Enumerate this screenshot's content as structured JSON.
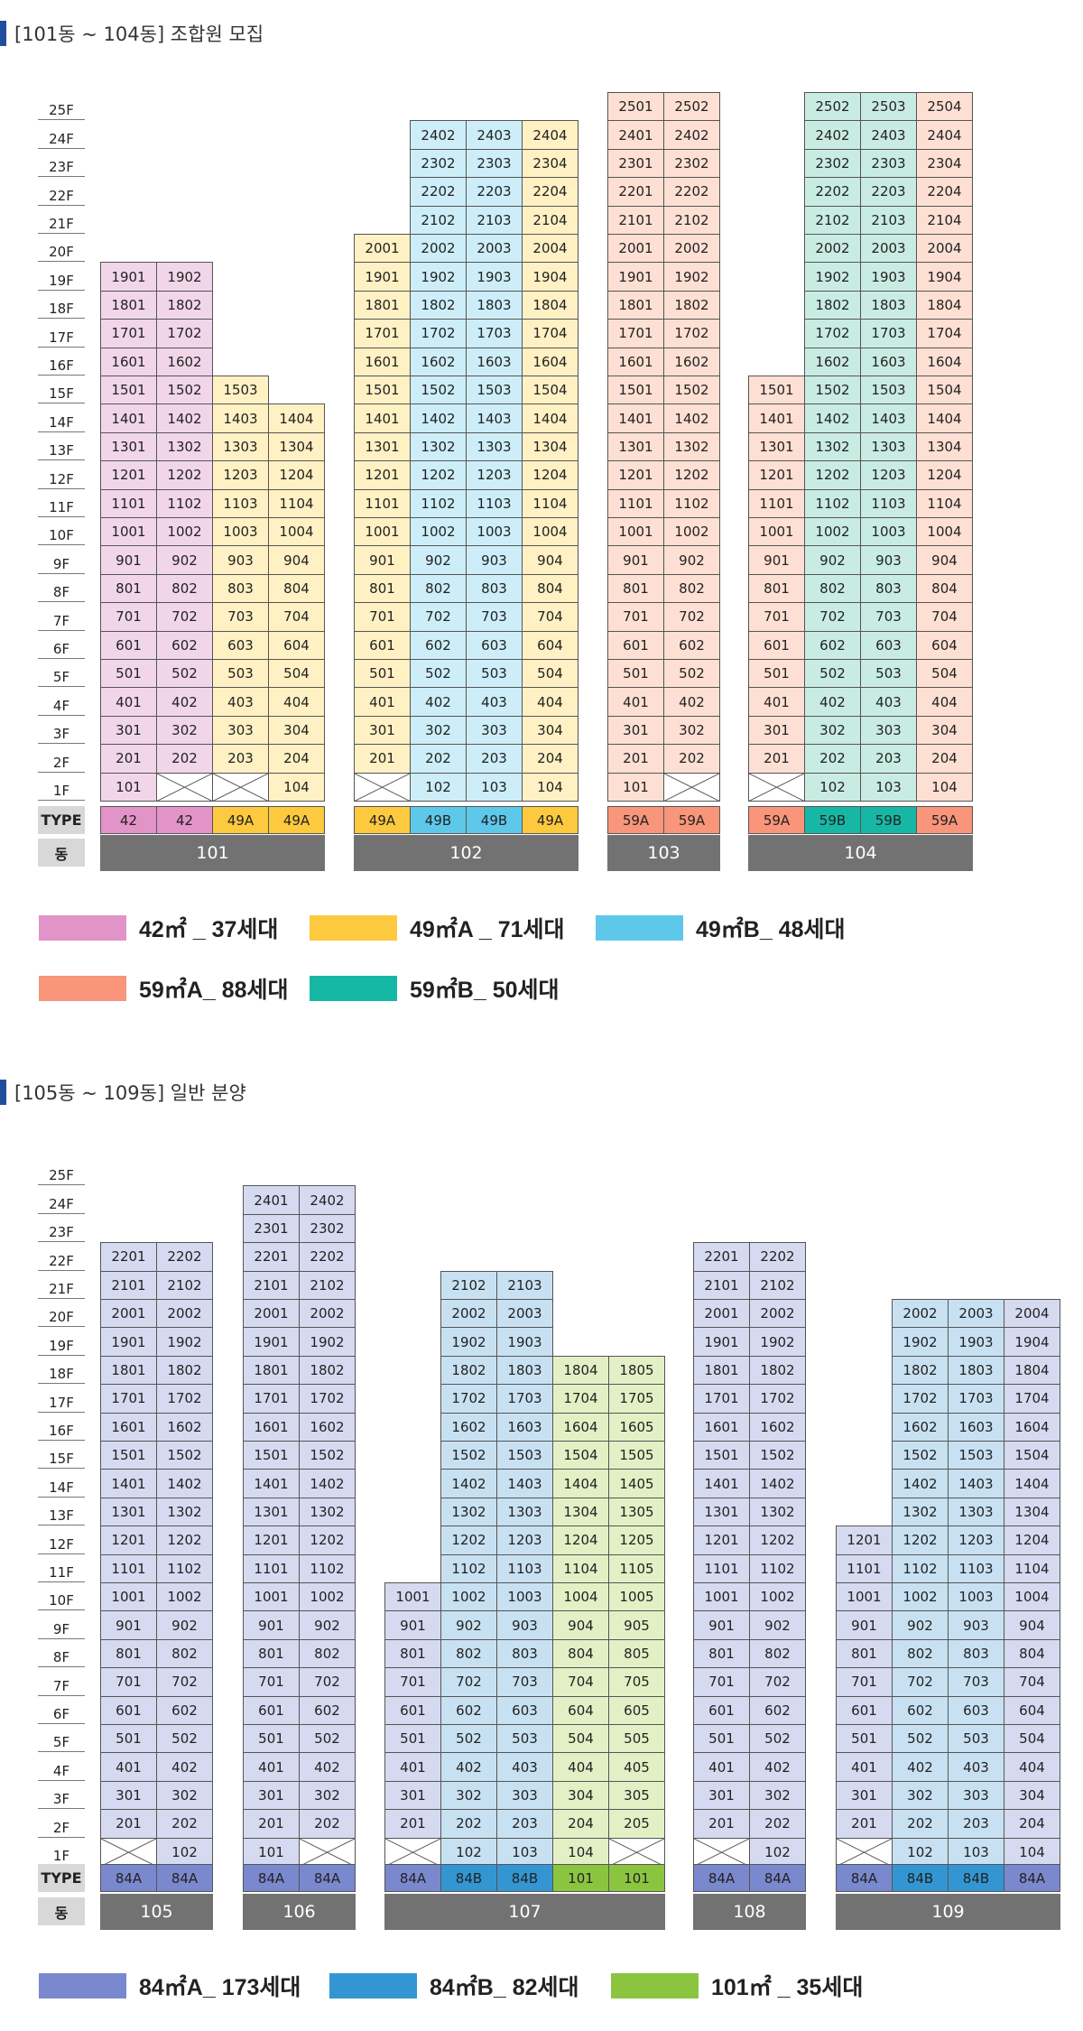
{
  "colors": {
    "42": "#f1d6ea",
    "49A": "#fff1c3",
    "49B": "#cdeef8",
    "59A": "#fde0d3",
    "59B": "#c9ece2",
    "84A": "#d6daf0",
    "84B": "#c8e1f2",
    "101": "#e3f0c5",
    "empty": "#ffffff"
  },
  "type_colors": {
    "42": "#e293c8",
    "49A": "#fdc93f",
    "49B": "#5ec8ea",
    "59A": "#f8957a",
    "59B": "#17b7a5",
    "84A": "#7a88ce",
    "84B": "#3396d2",
    "101": "#8bc53f"
  },
  "section1": {
    "title": "[101동 ~ 104동] 조합원 모집",
    "floors": [
      "25F",
      "24F",
      "23F",
      "22F",
      "21F",
      "20F",
      "19F",
      "18F",
      "17F",
      "16F",
      "15F",
      "14F",
      "13F",
      "12F",
      "11F",
      "10F",
      "9F",
      "8F",
      "7F",
      "6F",
      "5F",
      "4F",
      "3F",
      "2F",
      "1F"
    ],
    "type_label": "TYPE",
    "dong_label": "동",
    "legend": [
      {
        "type": "42",
        "text": "42㎡ _ 37세대"
      },
      {
        "type": "49A",
        "text": "49㎡A _ 71세대"
      },
      {
        "type": "49B",
        "text": "49㎡B_ 48세대"
      },
      {
        "type": "59A",
        "text": "59㎡A_ 88세대"
      },
      {
        "type": "59B",
        "text": "59㎡B_ 50세대"
      }
    ]
  },
  "section2": {
    "title": "[105동 ~ 109동] 일반 분양",
    "floors": [
      "25F",
      "24F",
      "23F",
      "22F",
      "21F",
      "20F",
      "19F",
      "18F",
      "17F",
      "16F",
      "15F",
      "14F",
      "13F",
      "12F",
      "11F",
      "10F",
      "9F",
      "8F",
      "7F",
      "6F",
      "5F",
      "4F",
      "3F",
      "2F",
      "1F"
    ],
    "type_label": "TYPE",
    "dong_label": "동",
    "legend": [
      {
        "type": "84A",
        "text": "84㎡A_ 173세대"
      },
      {
        "type": "84B",
        "text": "84㎡B_ 82세대"
      },
      {
        "type": "101",
        "text": "101㎡ _ 35세대"
      }
    ]
  },
  "buildings1": [
    {
      "dong": "101",
      "columns": [
        {
          "line": "01",
          "type": "42",
          "type_label": "42",
          "top": 19,
          "empty_floors": []
        },
        {
          "line": "02",
          "type": "42",
          "type_label": "42",
          "top": 19,
          "empty_floors": [
            1
          ]
        },
        {
          "line": "03",
          "type": "49A",
          "type_label": "49A",
          "top": 15,
          "empty_floors": [
            1
          ]
        },
        {
          "line": "04",
          "type": "49A",
          "type_label": "49A",
          "top": 14,
          "empty_floors": []
        }
      ]
    },
    {
      "dong": "102",
      "columns": [
        {
          "line": "01",
          "type": "49A",
          "type_label": "49A",
          "top": 20,
          "empty_floors": [
            1
          ]
        },
        {
          "line": "02",
          "type": "49B",
          "type_label": "49B",
          "top": 24,
          "empty_floors": []
        },
        {
          "line": "03",
          "type": "49B",
          "type_label": "49B",
          "top": 24,
          "empty_floors": []
        },
        {
          "line": "04",
          "type": "49A",
          "type_label": "49A",
          "top": 24,
          "empty_floors": []
        }
      ]
    },
    {
      "dong": "103",
      "columns": [
        {
          "line": "01",
          "type": "59A",
          "type_label": "59A",
          "top": 25,
          "empty_floors": []
        },
        {
          "line": "02",
          "type": "59A",
          "type_label": "59A",
          "top": 25,
          "empty_floors": [
            1
          ]
        }
      ]
    },
    {
      "dong": "104",
      "columns": [
        {
          "line": "01",
          "type": "59A",
          "type_label": "59A",
          "top": 15,
          "empty_floors": [
            1
          ]
        },
        {
          "line": "02",
          "type": "59B",
          "type_label": "59B",
          "top": 25,
          "empty_floors": []
        },
        {
          "line": "03",
          "type": "59B",
          "type_label": "59B",
          "top": 25,
          "empty_floors": []
        },
        {
          "line": "04",
          "type": "59A",
          "type_label": "59A",
          "top": 25,
          "empty_floors": []
        }
      ]
    }
  ],
  "buildings2": [
    {
      "dong": "105",
      "columns": [
        {
          "line": "01",
          "type": "84A",
          "type_label": "84A",
          "top": 22,
          "empty_floors": [
            1
          ]
        },
        {
          "line": "02",
          "type": "84A",
          "type_label": "84A",
          "top": 22,
          "empty_floors": []
        }
      ]
    },
    {
      "dong": "106",
      "columns": [
        {
          "line": "01",
          "type": "84A",
          "type_label": "84A",
          "top": 24,
          "empty_floors": []
        },
        {
          "line": "02",
          "type": "84A",
          "type_label": "84A",
          "top": 24,
          "empty_floors": [
            1
          ]
        }
      ]
    },
    {
      "dong": "107",
      "columns": [
        {
          "line": "01",
          "type": "84A",
          "type_label": "84A",
          "top": 10,
          "empty_floors": [
            1
          ]
        },
        {
          "line": "02",
          "type": "84B",
          "type_label": "84B",
          "top": 21,
          "empty_floors": []
        },
        {
          "line": "03",
          "type": "84B",
          "type_label": "84B",
          "top": 21,
          "empty_floors": []
        },
        {
          "line": "04",
          "type": "101",
          "type_label": "101",
          "top": 18,
          "empty_floors": []
        },
        {
          "line": "05",
          "type": "101",
          "type_label": "101",
          "top": 18,
          "empty_floors": [
            1
          ]
        }
      ]
    },
    {
      "dong": "108",
      "columns": [
        {
          "line": "01",
          "type": "84A",
          "type_label": "84A",
          "top": 22,
          "empty_floors": [
            1
          ]
        },
        {
          "line": "02",
          "type": "84A",
          "type_label": "84A",
          "top": 22,
          "empty_floors": []
        }
      ]
    },
    {
      "dong": "109",
      "columns": [
        {
          "line": "01",
          "type": "84A",
          "type_label": "84A",
          "top": 12,
          "empty_floors": [
            1
          ]
        },
        {
          "line": "02",
          "type": "84B",
          "type_label": "84B",
          "top": 20,
          "empty_floors": []
        },
        {
          "line": "03",
          "type": "84B",
          "type_label": "84B",
          "top": 20,
          "empty_floors": []
        },
        {
          "line": "04",
          "type": "84A",
          "type_label": "84A",
          "top": 20,
          "empty_floors": []
        }
      ]
    }
  ]
}
